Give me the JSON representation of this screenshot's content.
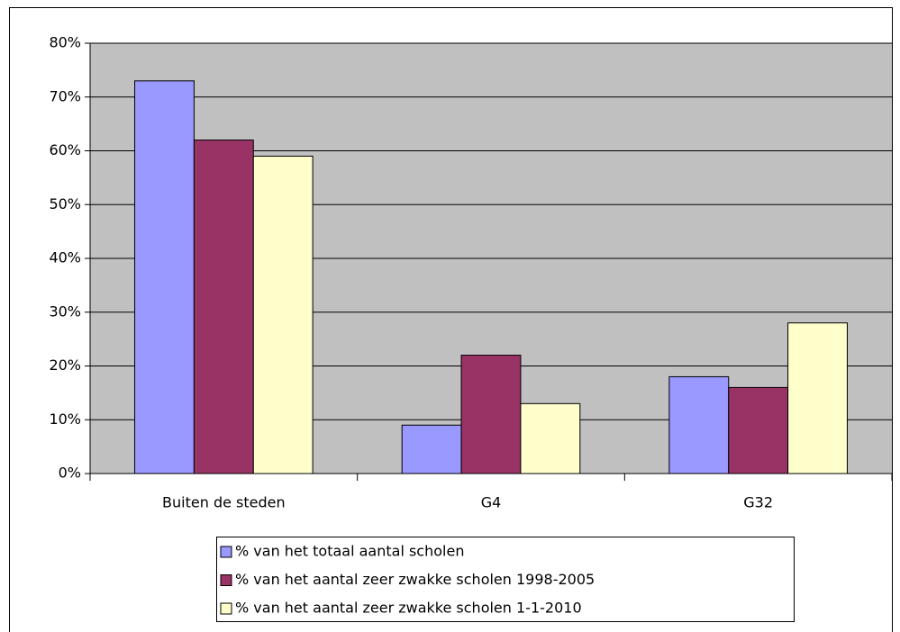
{
  "chart_data": {
    "type": "bar",
    "categories": [
      "Buiten de steden",
      "G4",
      "G32"
    ],
    "series": [
      {
        "name": "% van het totaal aantal scholen",
        "color": "#9999ff",
        "values": [
          73,
          9,
          18
        ]
      },
      {
        "name": "% van het aantal zeer zwakke scholen 1998-2005",
        "color": "#993366",
        "values": [
          62,
          22,
          16
        ]
      },
      {
        "name": "% van het aantal zeer zwakke scholen 1-1-2010",
        "color": "#ffffcc",
        "values": [
          59,
          13,
          28
        ]
      }
    ],
    "ylim": [
      0,
      80
    ],
    "yticks": [
      {
        "value": 0,
        "label": "0%"
      },
      {
        "value": 10,
        "label": "10%"
      },
      {
        "value": 20,
        "label": "20%"
      },
      {
        "value": 30,
        "label": "30%"
      },
      {
        "value": 40,
        "label": "40%"
      },
      {
        "value": 50,
        "label": "50%"
      },
      {
        "value": 60,
        "label": "60%"
      },
      {
        "value": 70,
        "label": "70%"
      },
      {
        "value": 80,
        "label": "80%"
      }
    ],
    "grid": true,
    "legend": "bottom"
  }
}
